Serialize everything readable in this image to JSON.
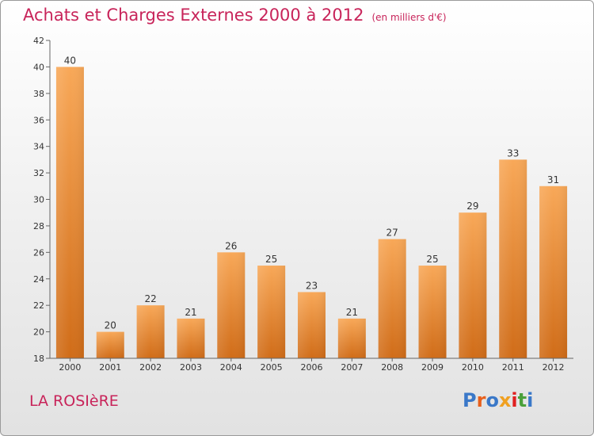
{
  "header": {
    "title": "Achats et Charges Externes 2000 à 2012",
    "unit": "(en milliers d'€)"
  },
  "footer": {
    "commune": "LA ROSIèRE",
    "logo": "Proxiti",
    "logo_colors": [
      "#3a78c8",
      "#e8601c",
      "#3a78c8",
      "#f0a020",
      "#e02020",
      "#4aa03a",
      "#3a78c8"
    ]
  },
  "colors": {
    "accent": "#c8245a",
    "bar_top": "#f8a858",
    "bar_bottom": "#d06c18",
    "axis": "#666666"
  },
  "chart_data": {
    "type": "bar",
    "categories": [
      "2000",
      "2001",
      "2002",
      "2003",
      "2004",
      "2005",
      "2006",
      "2007",
      "2008",
      "2009",
      "2010",
      "2011",
      "2012"
    ],
    "values": [
      40,
      20,
      22,
      21,
      26,
      25,
      23,
      21,
      27,
      25,
      29,
      33,
      31
    ],
    "ylim": [
      18,
      42
    ],
    "yticks": [
      18,
      20,
      22,
      24,
      26,
      28,
      30,
      32,
      34,
      36,
      38,
      40,
      42
    ],
    "grid": false,
    "legend": "none"
  }
}
